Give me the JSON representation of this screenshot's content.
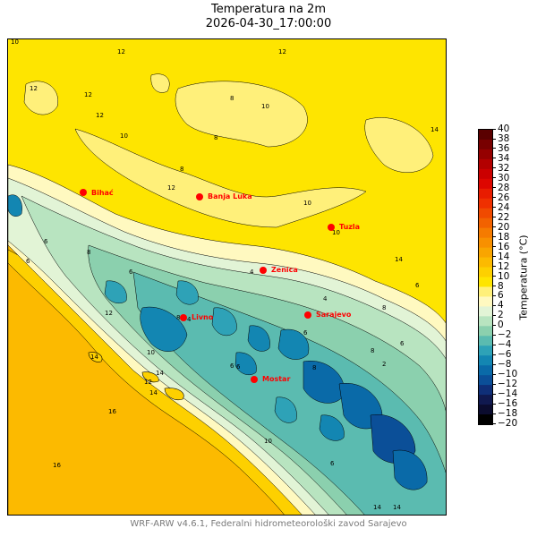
{
  "title": "Temperatura na 2m",
  "subtitle": "2026-04-30_17:00:00",
  "credit": "WRF-ARW v4.6.1, Federalni hidrometeorološki zavod Sarajevo",
  "colorbar": {
    "label": "Temperatura (°C)",
    "min": -20,
    "max": 40,
    "step": 2,
    "ticks": [
      "40",
      "38",
      "36",
      "34",
      "32",
      "30",
      "28",
      "26",
      "24",
      "22",
      "20",
      "18",
      "16",
      "14",
      "12",
      "10",
      "8",
      "6",
      "4",
      "2",
      "0",
      "−2",
      "−4",
      "−6",
      "−8",
      "−10",
      "−12",
      "−14",
      "−16",
      "−18",
      "−20"
    ],
    "colors": [
      "#000000",
      "#0b0c2e",
      "#10194f",
      "#0f2f78",
      "#0b4f98",
      "#0a6aa8",
      "#1386b2",
      "#2ea2b7",
      "#5bbbb0",
      "#8bd0ae",
      "#b8e4c0",
      "#e2f4d6",
      "#fff9c0",
      "#fff07a",
      "#fee500",
      "#fdd000",
      "#fcba00",
      "#f9a500",
      "#f89000",
      "#f57b00",
      "#f26200",
      "#f04a00",
      "#ef3000",
      "#e81c00",
      "#dd0600",
      "#cb0000",
      "#b30000",
      "#950000",
      "#780000",
      "#5a0000"
    ]
  },
  "cities": [
    {
      "name": "Bihać"
    },
    {
      "name": "Banja Luka"
    },
    {
      "name": "Tuzla"
    },
    {
      "name": "Zenica"
    },
    {
      "name": "Livno"
    },
    {
      "name": "Sarajevo"
    },
    {
      "name": "Mostar"
    }
  ],
  "contour_labels": [
    "10",
    "12",
    "12",
    "12",
    "8",
    "10",
    "12",
    "12",
    "10",
    "14",
    "8",
    "12",
    "8",
    "10",
    "10",
    "6",
    "4",
    "14",
    "6",
    "8",
    "6",
    "8",
    "4",
    "6",
    "2",
    "6",
    "14",
    "8",
    "4",
    "6",
    "10",
    "12",
    "14",
    "14",
    "16",
    "16",
    "8",
    "10",
    "6",
    "6",
    "14",
    "14",
    "6",
    "12",
    "8"
  ]
}
